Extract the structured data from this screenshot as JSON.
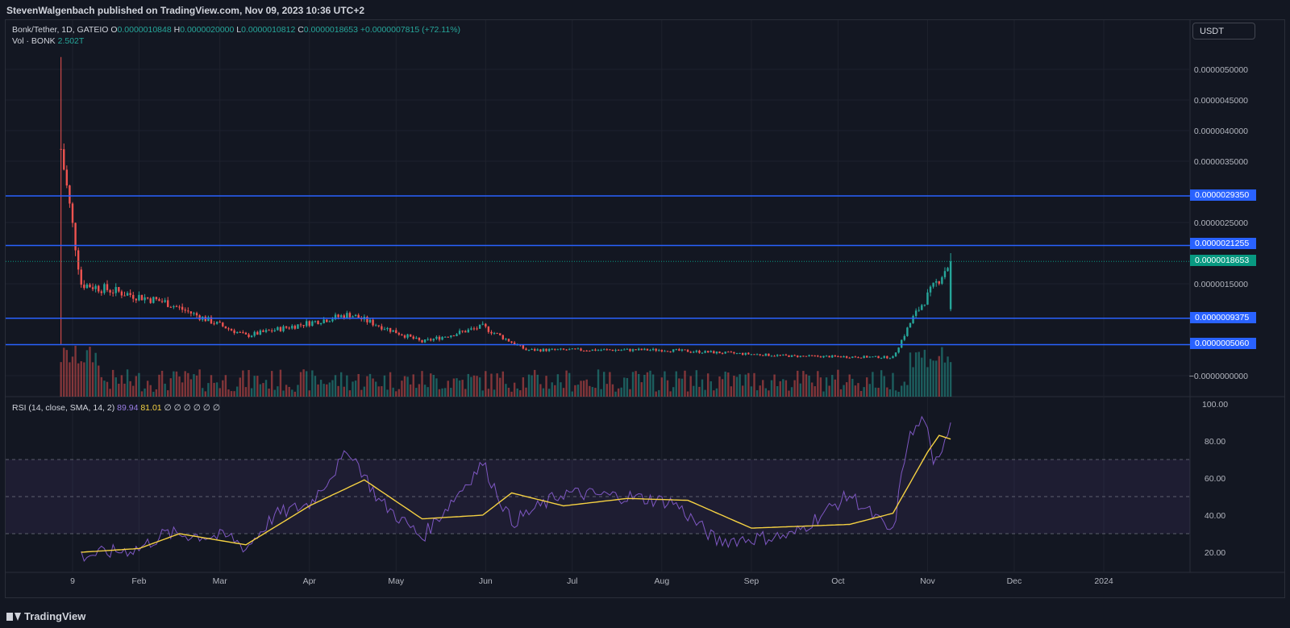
{
  "header": {
    "publisher": "StevenWalgenbach published on TradingView.com, Nov 09, 2023 10:36 UTC+2"
  },
  "legend": {
    "symbol": "Bonk/Tether, 1D, GATEIO",
    "o_label": "O",
    "o": "0.0000010848",
    "h_label": "H",
    "h": "0.0000020000",
    "l_label": "L",
    "l": "0.0000010812",
    "c_label": "C",
    "c": "0.0000018653",
    "change": "+0.0000007815 (+72.11%)",
    "vol_label": "Vol · BONK",
    "vol": "2.502T",
    "rsi_label": "RSI (14, close, SMA, 14, 2)",
    "rsi": "89.94",
    "rsi_sma": "81.01",
    "rsi_extra": "∅ ∅ ∅ ∅ ∅ ∅"
  },
  "currency_button": "USDT",
  "price_tags": [
    {
      "label": "0.0000029350",
      "color": "#2962ff"
    },
    {
      "label": "0.0000021255",
      "color": "#2962ff"
    },
    {
      "label": "0.0000018653",
      "color": "#089981"
    },
    {
      "label": "0.0000009375",
      "color": "#2962ff"
    },
    {
      "label": "0.0000005060",
      "color": "#2962ff"
    }
  ],
  "footer": {
    "brand": "TradingView"
  },
  "chart_data": [
    {
      "type": "candlestick",
      "title": "Bonk/Tether, 1D, GATEIO",
      "y_ticks": [
        "0.0000050000",
        "0.0000045000",
        "0.0000040000",
        "0.0000035000",
        "0.0000025000",
        "0.0000015000",
        "−0.0000000000"
      ],
      "y_tick_values": [
        5e-06,
        4.5e-06,
        4e-06,
        3.5e-06,
        2.5e-06,
        1.5e-06,
        0
      ],
      "x_ticks": [
        "9",
        "Feb",
        "Mar",
        "Apr",
        "May",
        "Jun",
        "Jul",
        "Aug",
        "Sep",
        "Oct",
        "Nov",
        "Dec",
        "2024"
      ],
      "x_tick_dates": [
        "2023-01-09",
        "2023-02-01",
        "2023-03-01",
        "2023-04-01",
        "2023-05-01",
        "2023-06-01",
        "2023-07-01",
        "2023-08-01",
        "2023-09-01",
        "2023-10-01",
        "2023-11-01",
        "2023-12-01",
        "2024-01-01"
      ],
      "horizontal_levels": [
        2.935e-06,
        2.1255e-06,
        9.375e-07,
        5.06e-07
      ],
      "last_close": 1.8653e-06,
      "colors": {
        "up": "#26a69a",
        "down": "#ef5350",
        "levels": "#2962ff"
      },
      "key_points": [
        {
          "date": "2023-01-05",
          "close": 3.7e-06,
          "high": 5.2e-06,
          "low": 5e-07
        },
        {
          "date": "2023-01-12",
          "close": 1.5e-06
        },
        {
          "date": "2023-02-10",
          "close": 1.2e-06
        },
        {
          "date": "2023-03-10",
          "close": 6.5e-07
        },
        {
          "date": "2023-04-15",
          "close": 1e-06
        },
        {
          "date": "2023-05-10",
          "close": 5.5e-07
        },
        {
          "date": "2023-05-31",
          "close": 8e-07
        },
        {
          "date": "2023-06-15",
          "close": 4.2e-07
        },
        {
          "date": "2023-08-01",
          "close": 4.2e-07
        },
        {
          "date": "2023-09-15",
          "close": 3.2e-07
        },
        {
          "date": "2023-10-20",
          "close": 3e-07
        },
        {
          "date": "2023-10-27",
          "close": 9.5e-07
        },
        {
          "date": "2023-11-09",
          "open": 1.0848e-06,
          "high": 2e-06,
          "low": 1.0812e-06,
          "close": 1.8653e-06
        }
      ]
    },
    {
      "type": "line",
      "title": "RSI (14, close, SMA, 14, 2)",
      "y_ticks": [
        "100.00",
        "80.00",
        "60.00",
        "40.00",
        "20.00"
      ],
      "ylim": [
        15,
        100
      ],
      "bands": [
        30,
        50,
        70
      ],
      "series": [
        {
          "color": "#7e57c2",
          "last": 89.94,
          "points": [
            [
              "2023-01-12",
              18
            ],
            [
              "2023-02-01",
              22
            ],
            [
              "2023-02-10",
              30
            ],
            [
              "2023-03-05",
              28
            ],
            [
              "2023-03-10",
              22
            ],
            [
              "2023-03-20",
              40
            ],
            [
              "2023-04-01",
              46
            ],
            [
              "2023-04-15",
              75
            ],
            [
              "2023-04-25",
              48
            ],
            [
              "2023-05-10",
              28
            ],
            [
              "2023-05-31",
              68
            ],
            [
              "2023-06-10",
              36
            ],
            [
              "2023-06-28",
              52
            ],
            [
              "2023-07-20",
              50
            ],
            [
              "2023-08-05",
              47
            ],
            [
              "2023-08-20",
              26
            ],
            [
              "2023-09-15",
              29
            ],
            [
              "2023-10-05",
              51
            ],
            [
              "2023-10-20",
              30
            ],
            [
              "2023-10-25",
              80
            ],
            [
              "2023-10-31",
              93
            ],
            [
              "2023-11-03",
              65
            ],
            [
              "2023-11-09",
              89.94
            ]
          ]
        },
        {
          "color": "#f5d142",
          "last": 81.01,
          "points": [
            [
              "2023-01-12",
              20
            ],
            [
              "2023-02-01",
              22
            ],
            [
              "2023-02-15",
              30
            ],
            [
              "2023-03-10",
              24
            ],
            [
              "2023-04-01",
              45
            ],
            [
              "2023-04-20",
              59
            ],
            [
              "2023-05-10",
              38
            ],
            [
              "2023-05-31",
              40
            ],
            [
              "2023-06-10",
              52
            ],
            [
              "2023-06-28",
              45
            ],
            [
              "2023-07-20",
              49
            ],
            [
              "2023-08-10",
              48
            ],
            [
              "2023-09-01",
              33
            ],
            [
              "2023-10-05",
              35
            ],
            [
              "2023-10-20",
              41
            ],
            [
              "2023-11-01",
              74
            ],
            [
              "2023-11-05",
              83
            ],
            [
              "2023-11-09",
              81.01
            ]
          ]
        }
      ]
    }
  ]
}
